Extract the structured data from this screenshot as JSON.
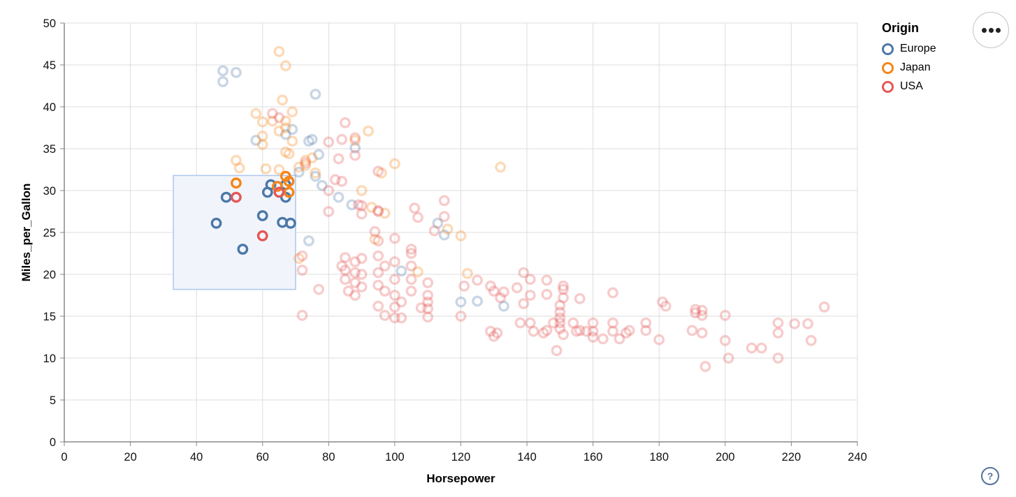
{
  "legend": {
    "title": "Origin",
    "items": [
      {
        "label": "Europe",
        "color": "#4c78a8"
      },
      {
        "label": "Japan",
        "color": "#f58518"
      },
      {
        "label": "USA",
        "color": "#e45756"
      }
    ]
  },
  "menu_button": {
    "icon": "ellipsis-menu"
  },
  "help_button": {
    "icon": "question-mark",
    "label": "?"
  },
  "chart_data": {
    "type": "scatter",
    "title": "",
    "xlabel": "Horsepower",
    "ylabel": "Miles_per_Gallon",
    "xlim": [
      0,
      240
    ],
    "ylim": [
      0,
      50
    ],
    "x_ticks": [
      0,
      20,
      40,
      60,
      80,
      100,
      120,
      140,
      160,
      180,
      200,
      220,
      240
    ],
    "y_ticks": [
      0,
      5,
      10,
      15,
      20,
      25,
      30,
      35,
      40,
      45,
      50
    ],
    "grid": true,
    "legend_position": "top-right",
    "point_shape": "open-circle",
    "unselected_opacity": 0.3,
    "brush_selection": {
      "x": [
        33,
        70
      ],
      "y": [
        18.2,
        31.8
      ],
      "fill": "#f1f5fb",
      "stroke": "#b3c8ee"
    },
    "series": [
      {
        "name": "Europe",
        "color": "#4c78a8",
        "selected": [
          [
            46,
            26.1
          ],
          [
            49,
            29.2
          ],
          [
            54,
            23
          ],
          [
            60,
            27
          ],
          [
            61.5,
            29.8
          ],
          [
            62.5,
            30.7
          ],
          [
            67,
            30.7
          ],
          [
            67,
            29.2
          ],
          [
            66,
            26.2
          ],
          [
            68.5,
            26.1
          ]
        ],
        "unselected": [
          [
            48,
            44.3
          ],
          [
            52,
            44.1
          ],
          [
            48,
            43
          ],
          [
            76,
            41.5
          ],
          [
            58,
            36
          ],
          [
            74,
            35.9
          ],
          [
            69,
            37.3
          ],
          [
            67,
            36.7
          ],
          [
            77,
            34.3
          ],
          [
            88,
            35.1
          ],
          [
            75,
            36.1
          ],
          [
            76,
            31.7
          ],
          [
            71,
            32.2
          ],
          [
            78,
            30.6
          ],
          [
            83,
            29.2
          ],
          [
            87,
            28.3
          ],
          [
            113,
            26.1
          ],
          [
            115,
            24.7
          ],
          [
            74,
            24
          ],
          [
            102,
            20.4
          ],
          [
            120,
            16.7
          ],
          [
            125,
            16.8
          ],
          [
            133,
            16.2
          ]
        ]
      },
      {
        "name": "Japan",
        "color": "#f58518",
        "selected": [
          [
            52,
            30.9
          ],
          [
            64.5,
            30.5
          ],
          [
            67,
            31.7
          ],
          [
            68,
            31.1
          ],
          [
            68,
            29.8
          ]
        ],
        "unselected": [
          [
            65,
            46.6
          ],
          [
            67,
            44.9
          ],
          [
            66,
            40.8
          ],
          [
            69,
            39.4
          ],
          [
            58,
            39.2
          ],
          [
            60,
            38.2
          ],
          [
            63,
            38.3
          ],
          [
            67,
            38.3
          ],
          [
            67,
            37.5
          ],
          [
            65,
            37.1
          ],
          [
            60,
            36.5
          ],
          [
            60,
            35.5
          ],
          [
            67,
            34.6
          ],
          [
            68,
            34.4
          ],
          [
            69,
            35.9
          ],
          [
            88,
            36
          ],
          [
            92,
            37.1
          ],
          [
            52,
            33.6
          ],
          [
            53,
            32.7
          ],
          [
            61,
            32.6
          ],
          [
            65,
            32.5
          ],
          [
            71,
            32.8
          ],
          [
            73,
            33.6
          ],
          [
            73,
            33
          ],
          [
            75,
            33.9
          ],
          [
            76,
            32.1
          ],
          [
            96,
            32.1
          ],
          [
            100,
            33.2
          ],
          [
            90,
            30
          ],
          [
            93,
            28
          ],
          [
            97,
            27.3
          ],
          [
            132,
            32.8
          ],
          [
            116,
            25.4
          ],
          [
            120,
            24.6
          ],
          [
            94,
            24.2
          ],
          [
            71,
            21.9
          ],
          [
            107,
            20.3
          ],
          [
            122,
            20.1
          ]
        ]
      },
      {
        "name": "USA",
        "color": "#e45756",
        "selected": [
          [
            52,
            29.2
          ],
          [
            60,
            24.6
          ],
          [
            65,
            29.8
          ]
        ],
        "unselected": [
          [
            63,
            39.2
          ],
          [
            65,
            38.7
          ],
          [
            85,
            38.1
          ],
          [
            80,
            35.8
          ],
          [
            84,
            36.1
          ],
          [
            88,
            36.3
          ],
          [
            73,
            33.3
          ],
          [
            83,
            33.8
          ],
          [
            88,
            34.2
          ],
          [
            95,
            32.3
          ],
          [
            82,
            31.3
          ],
          [
            84,
            31.1
          ],
          [
            80,
            30
          ],
          [
            89,
            28.3
          ],
          [
            90,
            28.2
          ],
          [
            95,
            27.6
          ],
          [
            80,
            27.5
          ],
          [
            90,
            27.2
          ],
          [
            95,
            27.5
          ],
          [
            106,
            27.9
          ],
          [
            107,
            26.8
          ],
          [
            115,
            28.8
          ],
          [
            115,
            26.9
          ],
          [
            112,
            25.2
          ],
          [
            94,
            25.1
          ],
          [
            105,
            23
          ],
          [
            85,
            22
          ],
          [
            84,
            21
          ],
          [
            90,
            21.9
          ],
          [
            88,
            21.5
          ],
          [
            72,
            22.2
          ],
          [
            72,
            20.5
          ],
          [
            77,
            18.2
          ],
          [
            85,
            20.5
          ],
          [
            88,
            20.2
          ],
          [
            90,
            20
          ],
          [
            85,
            19.4
          ],
          [
            88,
            19
          ],
          [
            90,
            18.5
          ],
          [
            86,
            18
          ],
          [
            88,
            17.5
          ],
          [
            95,
            24
          ],
          [
            100,
            24.3
          ],
          [
            95,
            22.2
          ],
          [
            97,
            21
          ],
          [
            100,
            21.5
          ],
          [
            95,
            20.2
          ],
          [
            100,
            19.4
          ],
          [
            95,
            18.7
          ],
          [
            97,
            18
          ],
          [
            100,
            17.5
          ],
          [
            95,
            16.2
          ],
          [
            100,
            16.1
          ],
          [
            97,
            15.1
          ],
          [
            100,
            14.8
          ],
          [
            105,
            22.5
          ],
          [
            105,
            21
          ],
          [
            105,
            19.4
          ],
          [
            110,
            19
          ],
          [
            105,
            18
          ],
          [
            110,
            17.5
          ],
          [
            108,
            16
          ],
          [
            110,
            16.7
          ],
          [
            110,
            15.9
          ],
          [
            110,
            14.9
          ],
          [
            121,
            18.6
          ],
          [
            125,
            19.3
          ],
          [
            129,
            18.6
          ],
          [
            133,
            17.9
          ],
          [
            120,
            15
          ],
          [
            72,
            15.1
          ],
          [
            130,
            18
          ],
          [
            132,
            17.2
          ],
          [
            137,
            18.4
          ],
          [
            139,
            20.2
          ],
          [
            141,
            19.4
          ],
          [
            146,
            19.3
          ],
          [
            151,
            18.6
          ],
          [
            151,
            18.2
          ],
          [
            139,
            16.5
          ],
          [
            141,
            17.5
          ],
          [
            146,
            17.6
          ],
          [
            151,
            17.2
          ],
          [
            156,
            17.1
          ],
          [
            166,
            17.8
          ],
          [
            181,
            16.7
          ],
          [
            182,
            16.2
          ],
          [
            191,
            15.8
          ],
          [
            191,
            15.4
          ],
          [
            150,
            16.3
          ],
          [
            150,
            15.5
          ],
          [
            150,
            14.8
          ],
          [
            150,
            14.2
          ],
          [
            150,
            13.5
          ],
          [
            138,
            14.2
          ],
          [
            141,
            14.2
          ],
          [
            146,
            13.3
          ],
          [
            148,
            14.2
          ],
          [
            154,
            14.2
          ],
          [
            156,
            13.3
          ],
          [
            160,
            14.2
          ],
          [
            160,
            13.2
          ],
          [
            166,
            14.2
          ],
          [
            166,
            13.2
          ],
          [
            171,
            13.3
          ],
          [
            176,
            14.2
          ],
          [
            176,
            13.3
          ],
          [
            190,
            13.3
          ],
          [
            130,
            12.6
          ],
          [
            151,
            12.8
          ],
          [
            160,
            12.5
          ],
          [
            168,
            12.3
          ],
          [
            180,
            12.2
          ],
          [
            193,
            15.7
          ],
          [
            193,
            15.1
          ],
          [
            193,
            13
          ],
          [
            200,
            15.1
          ],
          [
            200,
            12.1
          ],
          [
            230,
            16.1
          ],
          [
            216,
            14.2
          ],
          [
            216,
            13
          ],
          [
            221,
            14.1
          ],
          [
            225,
            14.1
          ],
          [
            226,
            12.1
          ],
          [
            208,
            11.2
          ],
          [
            211,
            11.2
          ],
          [
            216,
            10
          ],
          [
            201,
            10
          ],
          [
            194,
            9
          ],
          [
            129,
            13.2
          ],
          [
            131,
            13
          ],
          [
            142,
            13.2
          ],
          [
            145,
            13
          ],
          [
            155,
            13.2
          ],
          [
            158,
            13.2
          ],
          [
            163,
            12.3
          ],
          [
            170,
            13
          ],
          [
            149,
            10.9
          ],
          [
            102,
            16.7
          ],
          [
            102,
            14.8
          ]
        ]
      }
    ]
  }
}
